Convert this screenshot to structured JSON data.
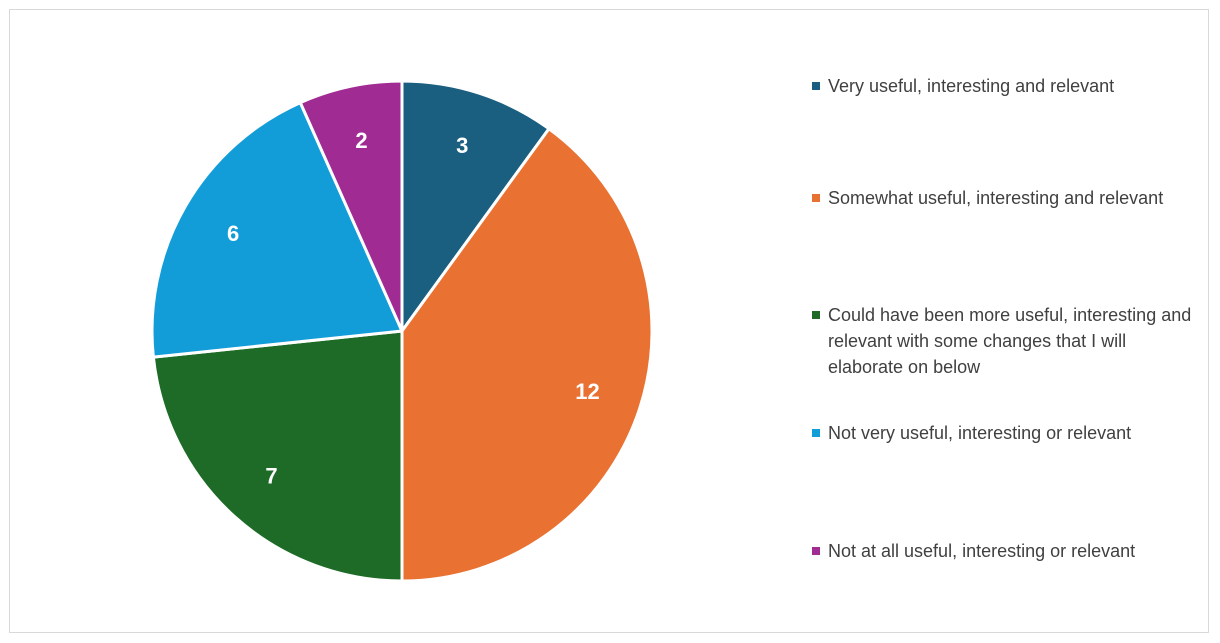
{
  "chart_data": {
    "type": "pie",
    "title": "",
    "categories": [
      "Very useful, interesting and relevant",
      "Somewhat useful, interesting and relevant",
      "Could have been more useful, interesting and relevant with some changes that I will elaborate on below",
      "Not very useful, interesting or relevant",
      "Not at all useful, interesting or relevant"
    ],
    "values": [
      3,
      12,
      7,
      6,
      2
    ],
    "data_labels": [
      "3",
      "12",
      "7",
      "6",
      "2"
    ],
    "colors": [
      "#1a5e80",
      "#e97132",
      "#1e6b27",
      "#139dd8",
      "#a02b93"
    ],
    "legend_position": "right",
    "start_angle": "top",
    "direction": "clockwise"
  }
}
